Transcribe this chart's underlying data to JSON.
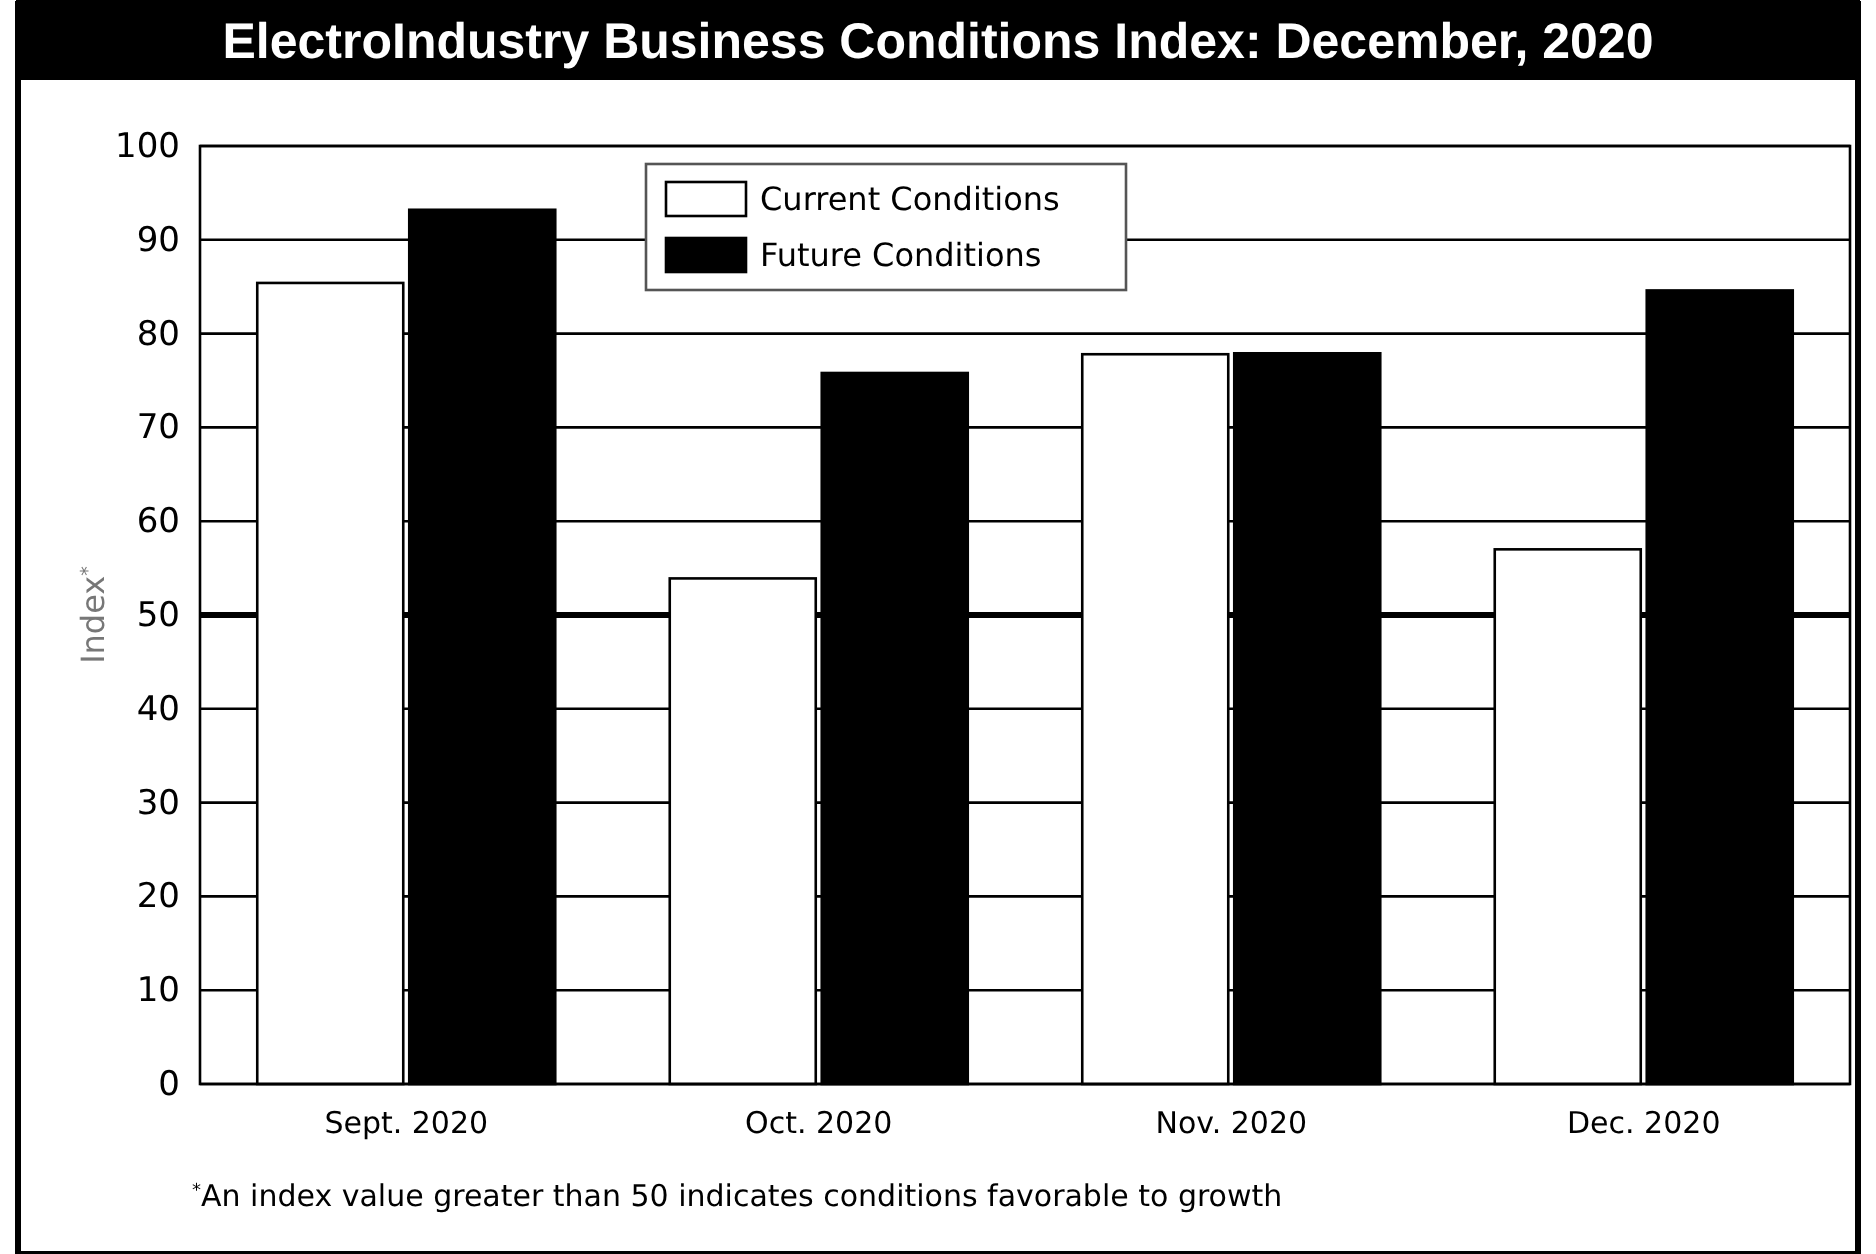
{
  "chart_data": {
    "type": "bar",
    "title": "ElectroIndustry Business Conditions Index: December, 2020",
    "categories": [
      "Sept. 2020",
      "Oct.  2020",
      "Nov. 2020",
      "Dec.  2020"
    ],
    "series": [
      {
        "name": "Current Conditions",
        "color": "#ffffff",
        "values": [
          85.4,
          53.9,
          77.8,
          57.0
        ]
      },
      {
        "name": "Future Conditions",
        "color": "#000000",
        "values": [
          93.2,
          75.8,
          77.9,
          84.6
        ]
      }
    ],
    "ylabel": "Index$^{*}$",
    "ylim": [
      0,
      100
    ],
    "yticks": [
      0,
      10,
      20,
      30,
      40,
      50,
      60,
      70,
      80,
      90,
      100
    ],
    "grid": "y",
    "legend": "top",
    "ref_lines": [
      {
        "axis": "y",
        "value": 50,
        "label": null
      }
    ],
    "annotations": [
      "$^{*}$An index value greater than 50 indicates conditions favorable to growth"
    ]
  }
}
